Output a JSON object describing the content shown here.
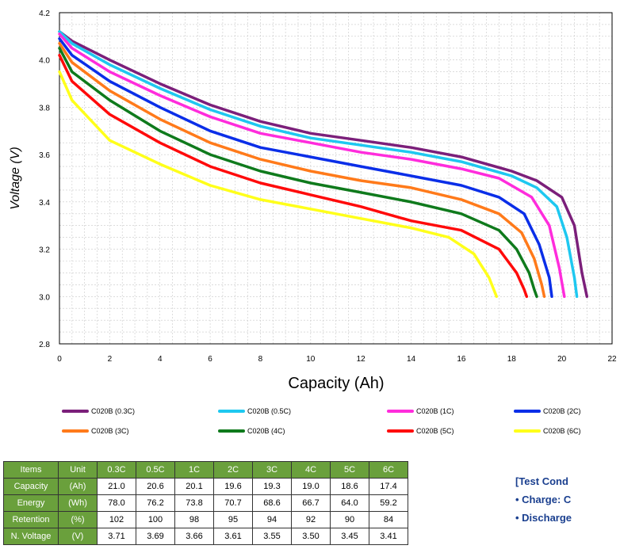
{
  "chart_data": {
    "type": "line",
    "title": "",
    "xlabel": "Capacity (Ah)",
    "ylabel": "Voltage (V)",
    "xlim": [
      0,
      22
    ],
    "ylim": [
      2.8,
      4.2
    ],
    "xticks": [
      "0",
      "2",
      "4",
      "6",
      "8",
      "10",
      "12",
      "14",
      "16",
      "18",
      "20",
      "22"
    ],
    "yticks": [
      "2.8",
      "3.0",
      "3.2",
      "3.4",
      "3.6",
      "3.8",
      "4.0",
      "4.2"
    ],
    "grid": true,
    "legend_position": "bottom",
    "series": [
      {
        "name": "C020B (0.3C)",
        "color": "#7b1f7a",
        "x": [
          0,
          0.5,
          2,
          4,
          6,
          8,
          10,
          12,
          14,
          16,
          18,
          19,
          20,
          20.5,
          20.8,
          21.0
        ],
        "y": [
          4.12,
          4.08,
          4.0,
          3.9,
          3.81,
          3.74,
          3.69,
          3.66,
          3.63,
          3.59,
          3.53,
          3.49,
          3.42,
          3.3,
          3.1,
          3.0
        ]
      },
      {
        "name": "C020B (0.5C)",
        "color": "#1ec8f0",
        "x": [
          0,
          0.5,
          2,
          4,
          6,
          8,
          10,
          12,
          14,
          16,
          18,
          19,
          19.8,
          20.2,
          20.5,
          20.6
        ],
        "y": [
          4.12,
          4.07,
          3.98,
          3.88,
          3.79,
          3.72,
          3.67,
          3.64,
          3.61,
          3.57,
          3.51,
          3.46,
          3.38,
          3.25,
          3.08,
          3.0
        ]
      },
      {
        "name": "C020B (1C)",
        "color": "#ff2cdc",
        "x": [
          0,
          0.5,
          2,
          4,
          6,
          8,
          10,
          12,
          14,
          16,
          17.5,
          18.8,
          19.5,
          19.9,
          20.1
        ],
        "y": [
          4.11,
          4.05,
          3.95,
          3.85,
          3.76,
          3.69,
          3.65,
          3.61,
          3.58,
          3.54,
          3.5,
          3.42,
          3.3,
          3.12,
          3.0
        ]
      },
      {
        "name": "C020B (2C)",
        "color": "#0a2ee8",
        "x": [
          0,
          0.5,
          2,
          4,
          6,
          8,
          10,
          12,
          14,
          16,
          17.5,
          18.5,
          19.1,
          19.5,
          19.6
        ],
        "y": [
          4.09,
          4.02,
          3.91,
          3.8,
          3.7,
          3.63,
          3.59,
          3.55,
          3.51,
          3.47,
          3.42,
          3.35,
          3.22,
          3.08,
          3.0
        ]
      },
      {
        "name": "C020B (3C)",
        "color": "#ff7a1a",
        "x": [
          0,
          0.5,
          2,
          4,
          6,
          8,
          10,
          12,
          14,
          16,
          17.5,
          18.4,
          18.9,
          19.2,
          19.3
        ],
        "y": [
          4.07,
          3.99,
          3.87,
          3.75,
          3.65,
          3.58,
          3.53,
          3.49,
          3.46,
          3.41,
          3.35,
          3.27,
          3.16,
          3.05,
          3.0
        ]
      },
      {
        "name": "C020B (4C)",
        "color": "#0f7a1c",
        "x": [
          0,
          0.5,
          2,
          4,
          6,
          8,
          10,
          12,
          14,
          16,
          17.5,
          18.2,
          18.7,
          18.9,
          19.0
        ],
        "y": [
          4.05,
          3.95,
          3.83,
          3.7,
          3.6,
          3.53,
          3.48,
          3.44,
          3.4,
          3.35,
          3.28,
          3.2,
          3.1,
          3.03,
          3.0
        ]
      },
      {
        "name": "C020B (5C)",
        "color": "#ff0a0a",
        "x": [
          0,
          0.5,
          2,
          4,
          6,
          8,
          10,
          12,
          14,
          16,
          17.5,
          18.2,
          18.5,
          18.6
        ],
        "y": [
          4.02,
          3.91,
          3.77,
          3.65,
          3.55,
          3.48,
          3.43,
          3.38,
          3.32,
          3.28,
          3.2,
          3.1,
          3.03,
          3.0
        ]
      },
      {
        "name": "C020B  (6C)",
        "color": "#ffff1a",
        "x": [
          0,
          0.5,
          2,
          4,
          6,
          8,
          10,
          12,
          14,
          15.5,
          16.5,
          17.1,
          17.4
        ],
        "y": [
          3.95,
          3.83,
          3.66,
          3.56,
          3.47,
          3.41,
          3.37,
          3.33,
          3.29,
          3.25,
          3.18,
          3.08,
          3.0
        ]
      }
    ]
  },
  "table": {
    "headers": [
      "Items",
      "Unit",
      "0.3C",
      "0.5C",
      "1C",
      "2C",
      "3C",
      "4C",
      "5C",
      "6C"
    ],
    "rows": [
      {
        "item": "Capacity",
        "unit": "(Ah)",
        "values": [
          "21.0",
          "20.6",
          "20.1",
          "19.6",
          "19.3",
          "19.0",
          "18.6",
          "17.4"
        ]
      },
      {
        "item": "Energy",
        "unit": "(Wh)",
        "values": [
          "78.0",
          "76.2",
          "73.8",
          "70.7",
          "68.6",
          "66.7",
          "64.0",
          "59.2"
        ]
      },
      {
        "item": "Retention",
        "unit": "(%)",
        "values": [
          "102",
          "100",
          "98",
          "95",
          "94",
          "92",
          "90",
          "84"
        ]
      },
      {
        "item": "N. Voltage",
        "unit": "(V)",
        "values": [
          "3.71",
          "3.69",
          "3.66",
          "3.61",
          "3.55",
          "3.50",
          "3.45",
          "3.41"
        ]
      }
    ]
  },
  "notes": {
    "title": "[Test Cond",
    "line1": "• Charge: C",
    "line2": "• Discharge"
  }
}
